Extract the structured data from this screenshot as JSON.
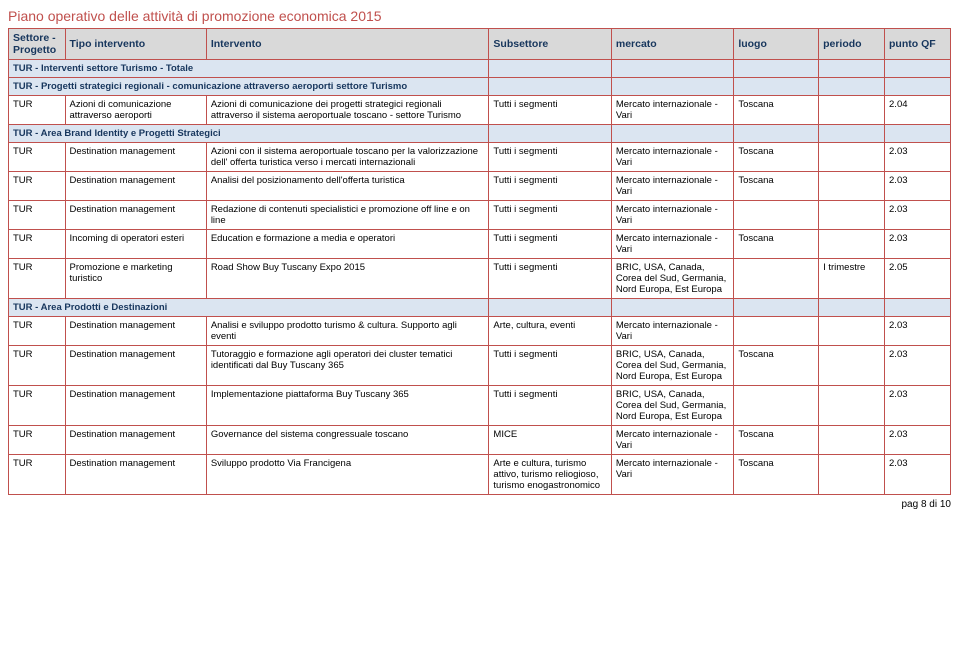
{
  "title": "Piano operativo delle attività di promozione economica 2015",
  "columns": [
    "Settore - Progetto",
    "Tipo intervento",
    "Intervento",
    "Subsettore",
    "mercato",
    "luogo",
    "periodo",
    "punto QF"
  ],
  "sections": [
    {
      "label": "TUR - Interventi settore Turismo - Totale",
      "rows": []
    },
    {
      "label": "TUR - Progetti strategici regionali - comunicazione attraverso aeroporti settore Turismo",
      "rows": [
        {
          "c0": "TUR",
          "c1": "Azioni di comunicazione attraverso aeroporti",
          "c2": "Azioni di comunicazione dei progetti strategici regionali attraverso il sistema aeroportuale toscano - settore Turismo",
          "c3": "Tutti i segmenti",
          "c4": "Mercato internazionale - Vari",
          "c5": "Toscana",
          "c6": "",
          "c7": "2.04"
        }
      ]
    },
    {
      "label": "TUR - Area Brand Identity e Progetti Strategici",
      "rows": [
        {
          "c0": "TUR",
          "c1": "Destination management",
          "c2": "Azioni con il sistema aeroportuale toscano per la valorizzazione dell' offerta turistica verso i mercati internazionali",
          "c3": "Tutti i segmenti",
          "c4": "Mercato internazionale - Vari",
          "c5": "Toscana",
          "c6": "",
          "c7": "2.03"
        },
        {
          "c0": "TUR",
          "c1": "Destination management",
          "c2": "Analisi del posizionamento dell'offerta turistica",
          "c3": "Tutti i segmenti",
          "c4": "Mercato internazionale - Vari",
          "c5": "Toscana",
          "c6": "",
          "c7": "2.03"
        },
        {
          "c0": "TUR",
          "c1": "Destination management",
          "c2": "Redazione di contenuti specialistici e promozione off line e on line",
          "c3": "Tutti i segmenti",
          "c4": "Mercato internazionale - Vari",
          "c5": "",
          "c6": "",
          "c7": "2.03"
        },
        {
          "c0": "TUR",
          "c1": "Incoming di operatori esteri",
          "c2": "Education e formazione a media e operatori",
          "c3": "Tutti i segmenti",
          "c4": "Mercato internazionale - Vari",
          "c5": "Toscana",
          "c6": "",
          "c7": "2.03"
        },
        {
          "c0": "TUR",
          "c1": "Promozione e marketing turistico",
          "c2": "Road Show Buy Tuscany Expo 2015",
          "c3": "Tutti i segmenti",
          "c4": "BRIC, USA, Canada, Corea del Sud, Germania, Nord Europa, Est Europa",
          "c5": "",
          "c6": "I trimestre",
          "c7": "2.05"
        }
      ]
    },
    {
      "label": "TUR - Area Prodotti e Destinazioni",
      "rows": [
        {
          "c0": "TUR",
          "c1": "Destination management",
          "c2": "Analisi e sviluppo prodotto turismo & cultura. Supporto agli eventi",
          "c3": "Arte, cultura, eventi",
          "c4": "Mercato internazionale - Vari",
          "c5": "",
          "c6": "",
          "c7": "2.03"
        },
        {
          "c0": "TUR",
          "c1": "Destination management",
          "c2": "Tutoraggio e formazione agli operatori dei cluster tematici identificati dal Buy Tuscany 365",
          "c3": "Tutti i segmenti",
          "c4": "BRIC, USA, Canada, Corea del Sud, Germania, Nord Europa, Est Europa",
          "c5": "Toscana",
          "c6": "",
          "c7": "2.03"
        },
        {
          "c0": "TUR",
          "c1": "Destination management",
          "c2": "Implementazione piattaforma Buy Tuscany 365",
          "c3": "Tutti i segmenti",
          "c4": "BRIC, USA, Canada, Corea del Sud, Germania, Nord Europa, Est Europa",
          "c5": "",
          "c6": "",
          "c7": "2.03"
        },
        {
          "c0": "TUR",
          "c1": "Destination management",
          "c2": "Governance del sistema congressuale toscano",
          "c3": "MICE",
          "c4": "Mercato internazionale - Vari",
          "c5": "Toscana",
          "c6": "",
          "c7": "2.03"
        },
        {
          "c0": "TUR",
          "c1": "Destination management",
          "c2": "Sviluppo prodotto Via Francigena",
          "c3": "Arte e cultura, turismo attivo, turismo reliogioso, turismo enogastronomico",
          "c4": "Mercato internazionale - Vari",
          "c5": "Toscana",
          "c6": "",
          "c7": "2.03"
        }
      ]
    }
  ],
  "footer": "pag 8 di 10",
  "colors": {
    "title": "#c0504d",
    "border": "#c0504d",
    "header_bg": "#d9d9d9",
    "header_text": "#17365d",
    "section_bg": "#dbe5f1",
    "section_text": "#17365d"
  }
}
